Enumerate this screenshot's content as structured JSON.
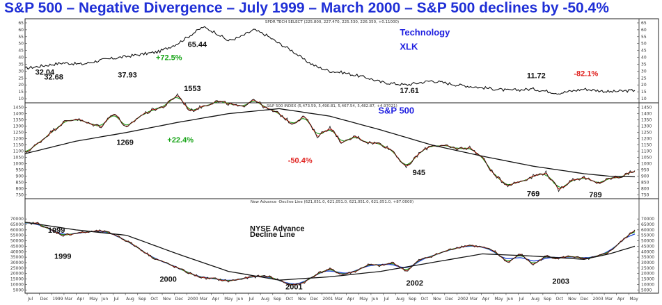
{
  "title": "S&P 500 – Negative Divergence – July 1999 – March 2000 – S&P 500 declines by -50.4%",
  "colors": {
    "title": "#1f2fd6",
    "price": "#111111",
    "ma_long": "#111111",
    "ma_fast_red": "#d42a1a",
    "ma_mid_green": "#1a9a1a",
    "ma_blue": "#2b4fd8",
    "annotation_green": "#16a316",
    "annotation_red": "#e0221f",
    "annotation_blue": "#2020e0"
  },
  "chart_data": [
    {
      "type": "line",
      "panel": "top",
      "subtitle": "SPDR TECH SELECT (225.800, 227.470, 225.530, 226.350, +0.11000)",
      "y_ticks": [
        65,
        60,
        55,
        50,
        45,
        40,
        35,
        30,
        25,
        20,
        15,
        10
      ],
      "ylim": [
        7,
        68
      ],
      "xlim": [
        0,
        48
      ],
      "series": [
        {
          "role": "price",
          "x": [
            0,
            1.5,
            3,
            4.5,
            6,
            7.5,
            9,
            10.5,
            12,
            13,
            14,
            15,
            16,
            17,
            18,
            19,
            20,
            21,
            22,
            23,
            24,
            25,
            26,
            27,
            28,
            30,
            32,
            34,
            36,
            38,
            40,
            42,
            44,
            46,
            48
          ],
          "values": [
            32,
            34,
            36,
            35,
            38,
            40,
            42,
            44,
            50,
            56,
            62,
            58,
            52,
            55,
            60,
            56,
            50,
            45,
            38,
            33,
            30,
            29,
            27,
            25,
            22,
            20,
            23,
            20,
            18,
            16,
            17,
            14,
            17,
            15,
            16
          ]
        }
      ],
      "annotations": [
        {
          "text": "32.04",
          "x": 0.8,
          "y": 27.5,
          "style": "black"
        },
        {
          "text": "32.68",
          "x": 1.5,
          "y": 24,
          "style": "black"
        },
        {
          "text": "37.93",
          "x": 7.3,
          "y": 25.5,
          "style": "black"
        },
        {
          "text": "+72.5%",
          "x": 10.3,
          "y": 38,
          "style": "green"
        },
        {
          "text": "65.44",
          "x": 12.8,
          "y": 47.5,
          "style": "black"
        },
        {
          "text": "Technology",
          "x": 29.5,
          "y": 56,
          "style": "blue"
        },
        {
          "text": "XLK",
          "x": 29.5,
          "y": 45.5,
          "style": "blue"
        },
        {
          "text": "17.61",
          "x": 29.5,
          "y": 14,
          "style": "black"
        },
        {
          "text": "11.72",
          "x": 39.5,
          "y": 25,
          "style": "black"
        },
        {
          "text": "-82.1%",
          "x": 43.2,
          "y": 26.5,
          "style": "red"
        }
      ]
    },
    {
      "type": "line",
      "panel": "middle",
      "subtitle": "S&P 500 INDEX (5,473.59, 5,490.81, 5,467.54, 5,482.87, +4.97021)",
      "y_ticks": [
        1600,
        1550,
        1500,
        1450,
        1400,
        1350,
        1300,
        1250,
        1200,
        1150,
        1100,
        1050,
        1000,
        950,
        900,
        850,
        800,
        750
      ],
      "ylim": [
        720,
        1620
      ],
      "xlim": [
        0,
        48
      ],
      "series": [
        {
          "role": "price",
          "x": [
            0,
            1,
            2,
            3,
            4,
            5,
            6,
            7,
            8,
            9,
            10,
            11,
            12,
            13,
            14,
            15,
            16,
            17,
            18,
            19,
            20,
            21,
            22,
            23,
            24,
            25,
            26,
            27,
            28,
            29,
            30,
            31,
            32,
            33,
            34,
            35,
            36,
            37,
            38,
            39,
            40,
            41,
            42,
            43,
            44,
            45,
            46,
            47,
            48
          ],
          "values": [
            1085,
            1160,
            1250,
            1330,
            1360,
            1320,
            1300,
            1410,
            1280,
            1380,
            1430,
            1460,
            1553,
            1420,
            1460,
            1500,
            1480,
            1450,
            1520,
            1440,
            1400,
            1320,
            1380,
            1220,
            1290,
            1160,
            1220,
            1170,
            1160,
            1100,
            965,
            1080,
            1150,
            1140,
            1120,
            1130,
            1050,
            900,
            830,
            860,
            900,
            930,
            790,
            870,
            890,
            840,
            880,
            900,
            945
          ]
        },
        {
          "role": "ma_long",
          "x": [
            0,
            4,
            8,
            12,
            16,
            20,
            24,
            28,
            32,
            36,
            40,
            44,
            46,
            48
          ],
          "values": [
            1080,
            1180,
            1250,
            1330,
            1400,
            1440,
            1380,
            1270,
            1150,
            1060,
            980,
            920,
            900,
            895
          ]
        }
      ],
      "annotations": [
        {
          "text": "1553",
          "x": 12.5,
          "y": 1580,
          "style": "black"
        },
        {
          "text": "S&P 500",
          "x": 27.8,
          "y": 1400,
          "style": "blue"
        },
        {
          "text": "1269",
          "x": 7.2,
          "y": 1150,
          "style": "black"
        },
        {
          "text": "+22.4%",
          "x": 11.2,
          "y": 1170,
          "style": "green"
        },
        {
          "text": "-50.4%",
          "x": 20.7,
          "y": 1005,
          "style": "red"
        },
        {
          "text": "945",
          "x": 30.5,
          "y": 910,
          "style": "black"
        },
        {
          "text": "769",
          "x": 39.5,
          "y": 740,
          "style": "black"
        },
        {
          "text": "789",
          "x": 44.4,
          "y": 730,
          "style": "black"
        }
      ]
    },
    {
      "type": "line",
      "panel": "bottom",
      "subtitle": "New Advance -Decline Line (621,051.0, 621,051.0, 621,051.0, 621,051.0, +87.0000)",
      "y_ticks": [
        70000,
        65000,
        60000,
        55000,
        50000,
        45000,
        40000,
        35000,
        30000,
        25000,
        20000,
        15000,
        10000,
        5000
      ],
      "ylim": [
        2000,
        72000
      ],
      "xlim": [
        0,
        48
      ],
      "series": [
        {
          "role": "price",
          "x": [
            0,
            1,
            2,
            3,
            4,
            5,
            6,
            7,
            8,
            9,
            10,
            11,
            12,
            13,
            14,
            15,
            16,
            17,
            18,
            19,
            20,
            21,
            22,
            23,
            24,
            25,
            26,
            27,
            28,
            29,
            30,
            31,
            32,
            33,
            34,
            35,
            36,
            37,
            38,
            39,
            40,
            41,
            42,
            43,
            44,
            45,
            46,
            47,
            48
          ],
          "values": [
            66000,
            66000,
            60000,
            55000,
            57000,
            58000,
            59000,
            56000,
            50000,
            43000,
            35000,
            30000,
            25000,
            20000,
            16000,
            15000,
            13000,
            15000,
            17000,
            18000,
            14000,
            9000,
            12000,
            20000,
            24000,
            19000,
            22000,
            28000,
            27000,
            30000,
            22000,
            32000,
            36000,
            40000,
            44000,
            46000,
            44000,
            40000,
            30000,
            38000,
            28000,
            36000,
            34000,
            36000,
            33000,
            35000,
            40000,
            50000,
            60000
          ]
        },
        {
          "role": "ma_long",
          "x": [
            0,
            4,
            8,
            12,
            16,
            20,
            24,
            28,
            32,
            36,
            40,
            44,
            46,
            48
          ],
          "values": [
            67000,
            60000,
            55000,
            38000,
            22000,
            14000,
            17000,
            22000,
            30000,
            38000,
            36000,
            33000,
            38000,
            45000
          ]
        }
      ],
      "annotations": [
        {
          "text": "1999",
          "x": 1.8,
          "y": 57500,
          "style": "black"
        },
        {
          "text": "1999",
          "x": 2.3,
          "y": 33500,
          "style": "black"
        },
        {
          "text": "NYSE Advance",
          "x": 17.7,
          "y": 59000,
          "style": "black-lg"
        },
        {
          "text": "Decline Line",
          "x": 17.7,
          "y": 53500,
          "style": "black-lg"
        },
        {
          "text": "2000",
          "x": 10.6,
          "y": 12500,
          "style": "black"
        },
        {
          "text": "2001",
          "x": 20.5,
          "y": 5500,
          "style": "black"
        },
        {
          "text": "2002",
          "x": 30.0,
          "y": 9000,
          "style": "black"
        },
        {
          "text": "2003",
          "x": 41.5,
          "y": 10500,
          "style": "black"
        }
      ]
    }
  ],
  "x_axis_labels": [
    "Jul",
    "Dec",
    "1999",
    "Mar",
    "Apr",
    "May",
    "Jun",
    "Jul",
    "Aug",
    "Sep",
    "Oct",
    "Nov",
    "Dec",
    "2000",
    "Mar",
    "Apr",
    "May",
    "Jun",
    "Jul",
    "Aug",
    "Sep",
    "Oct",
    "Nov",
    "Dec",
    "2001",
    "Mar",
    "Apr",
    "May",
    "Jun",
    "Jul",
    "Aug",
    "Sep",
    "Oct",
    "Nov",
    "Dec",
    "2002",
    "Mar",
    "Apr",
    "May",
    "Jun",
    "Jul",
    "Aug",
    "Sep",
    "Oct",
    "Nov",
    "Dec",
    "2003",
    "Mar",
    "Apr",
    "May"
  ]
}
